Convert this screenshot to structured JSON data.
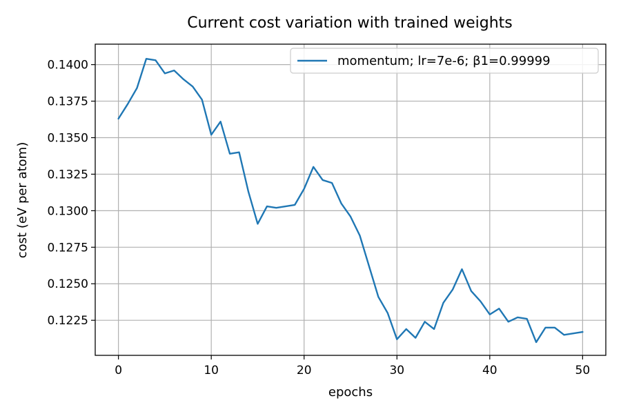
{
  "chart_data": {
    "type": "line",
    "title": "Current cost variation with trained weights",
    "xlabel": "epochs",
    "ylabel": "cost (eV per atom)",
    "xlim": [
      -2.5,
      52.5
    ],
    "ylim": [
      0.1201,
      0.1414
    ],
    "xticks": [
      0,
      10,
      20,
      30,
      40,
      50
    ],
    "yticks": [
      0.1225,
      0.125,
      0.1275,
      0.13,
      0.1325,
      0.135,
      0.1375,
      0.14
    ],
    "xtick_labels": [
      "0",
      "10",
      "20",
      "30",
      "40",
      "50"
    ],
    "ytick_labels": [
      "0.1225",
      "0.1250",
      "0.1275",
      "0.1300",
      "0.1325",
      "0.1350",
      "0.1375",
      "0.1400"
    ],
    "grid": true,
    "legend_position": "top-right",
    "series": [
      {
        "name": "momentum;  lr=7e-6;  β1=0.99999",
        "color": "#1f77b4",
        "x": [
          0,
          1,
          2,
          3,
          4,
          5,
          6,
          7,
          8,
          9,
          10,
          11,
          12,
          13,
          14,
          15,
          16,
          17,
          18,
          19,
          20,
          21,
          22,
          23,
          24,
          25,
          26,
          27,
          28,
          29,
          30,
          31,
          32,
          33,
          34,
          35,
          36,
          37,
          38,
          39,
          40,
          41,
          42,
          43,
          44,
          45,
          46,
          47,
          48,
          49,
          50
        ],
        "values": [
          0.1363,
          0.1373,
          0.1384,
          0.1404,
          0.1403,
          0.1394,
          0.1396,
          0.139,
          0.1385,
          0.1376,
          0.1352,
          0.1361,
          0.1339,
          0.134,
          0.1313,
          0.1291,
          0.1303,
          0.1302,
          0.1303,
          0.1304,
          0.1315,
          0.133,
          0.1321,
          0.1319,
          0.1305,
          0.1296,
          0.1283,
          0.1262,
          0.1241,
          0.123,
          0.1212,
          0.1219,
          0.1213,
          0.1224,
          0.1219,
          0.1237,
          0.1246,
          0.126,
          0.1245,
          0.1238,
          0.1229,
          0.1233,
          0.1224,
          0.1227,
          0.1226,
          0.121,
          0.122,
          0.122,
          0.1215,
          0.1216,
          0.1217
        ]
      }
    ]
  }
}
